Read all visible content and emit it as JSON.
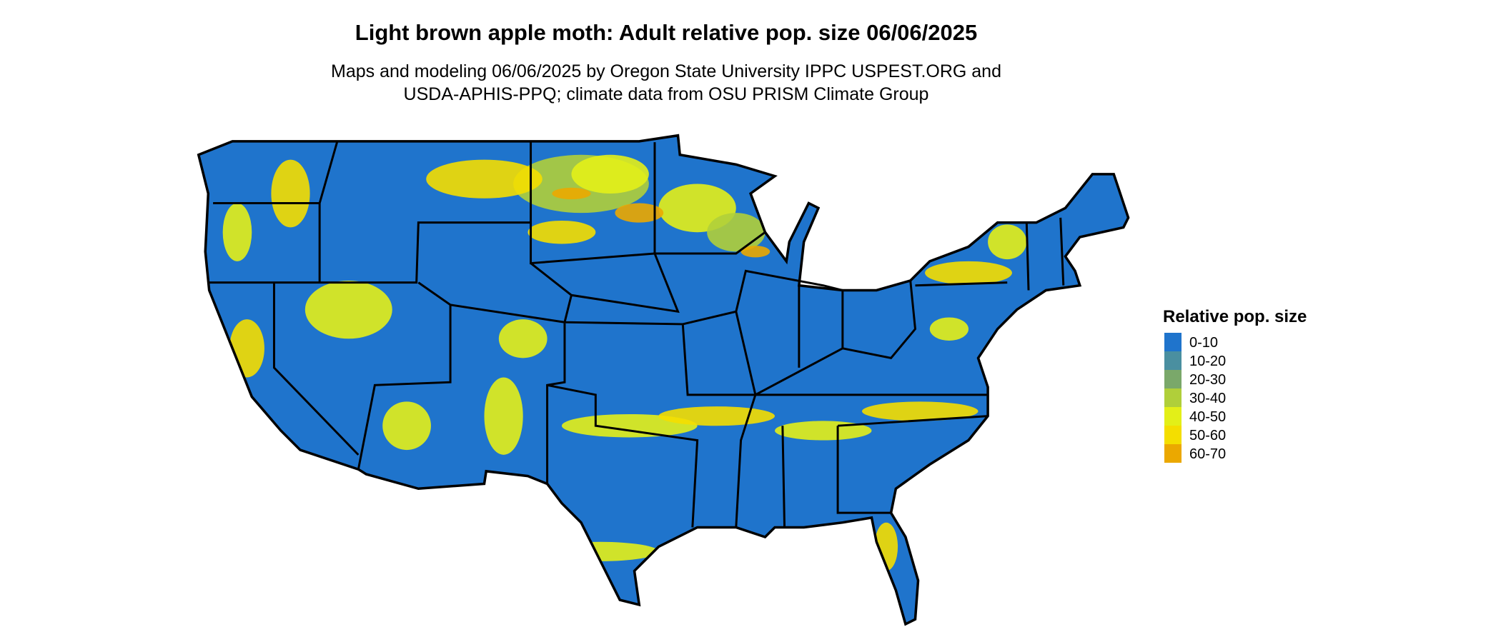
{
  "title": "Light brown apple moth: Adult relative pop. size 06/06/2025",
  "subtitle": [
    "Maps and modeling 06/06/2025 by Oregon State University IPPC USPEST.ORG and",
    "USDA-APHIS-PPQ; climate data from OSU PRISM Climate Group"
  ],
  "legend": {
    "title": "Relative pop. size",
    "items": [
      {
        "label": "0-10",
        "color": "#1f74cc"
      },
      {
        "label": "10-20",
        "color": "#4a8fa0"
      },
      {
        "label": "20-30",
        "color": "#7aa86a"
      },
      {
        "label": "30-40",
        "color": "#b0cf3a"
      },
      {
        "label": "40-50",
        "color": "#e3ef18"
      },
      {
        "label": "50-60",
        "color": "#f4de00"
      },
      {
        "label": "60-70",
        "color": "#eba800"
      }
    ]
  }
}
